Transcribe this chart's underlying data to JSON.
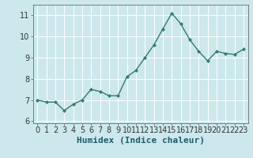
{
  "x": [
    0,
    1,
    2,
    3,
    4,
    5,
    6,
    7,
    8,
    9,
    10,
    11,
    12,
    13,
    14,
    15,
    16,
    17,
    18,
    19,
    20,
    21,
    22,
    23
  ],
  "y": [
    7.0,
    6.9,
    6.9,
    6.5,
    6.8,
    7.0,
    7.5,
    7.4,
    7.2,
    7.2,
    8.1,
    8.4,
    9.0,
    9.6,
    10.35,
    11.1,
    10.6,
    9.85,
    9.3,
    8.85,
    9.3,
    9.2,
    9.15,
    9.4
  ],
  "line_color": "#2e7d6e",
  "marker": "D",
  "marker_size": 2.2,
  "line_width": 1.0,
  "bg_color": "#cce8ec",
  "grid_color": "#ffffff",
  "xlabel": "Humidex (Indice chaleur)",
  "xlabel_fontsize": 8,
  "xlabel_weight": "bold",
  "tick_fontsize": 7,
  "xlim": [
    -0.5,
    23.5
  ],
  "ylim": [
    5.9,
    11.5
  ],
  "yticks": [
    6,
    7,
    8,
    9,
    10,
    11
  ],
  "xticks": [
    0,
    1,
    2,
    3,
    4,
    5,
    6,
    7,
    8,
    9,
    10,
    11,
    12,
    13,
    14,
    15,
    16,
    17,
    18,
    19,
    20,
    21,
    22,
    23
  ]
}
